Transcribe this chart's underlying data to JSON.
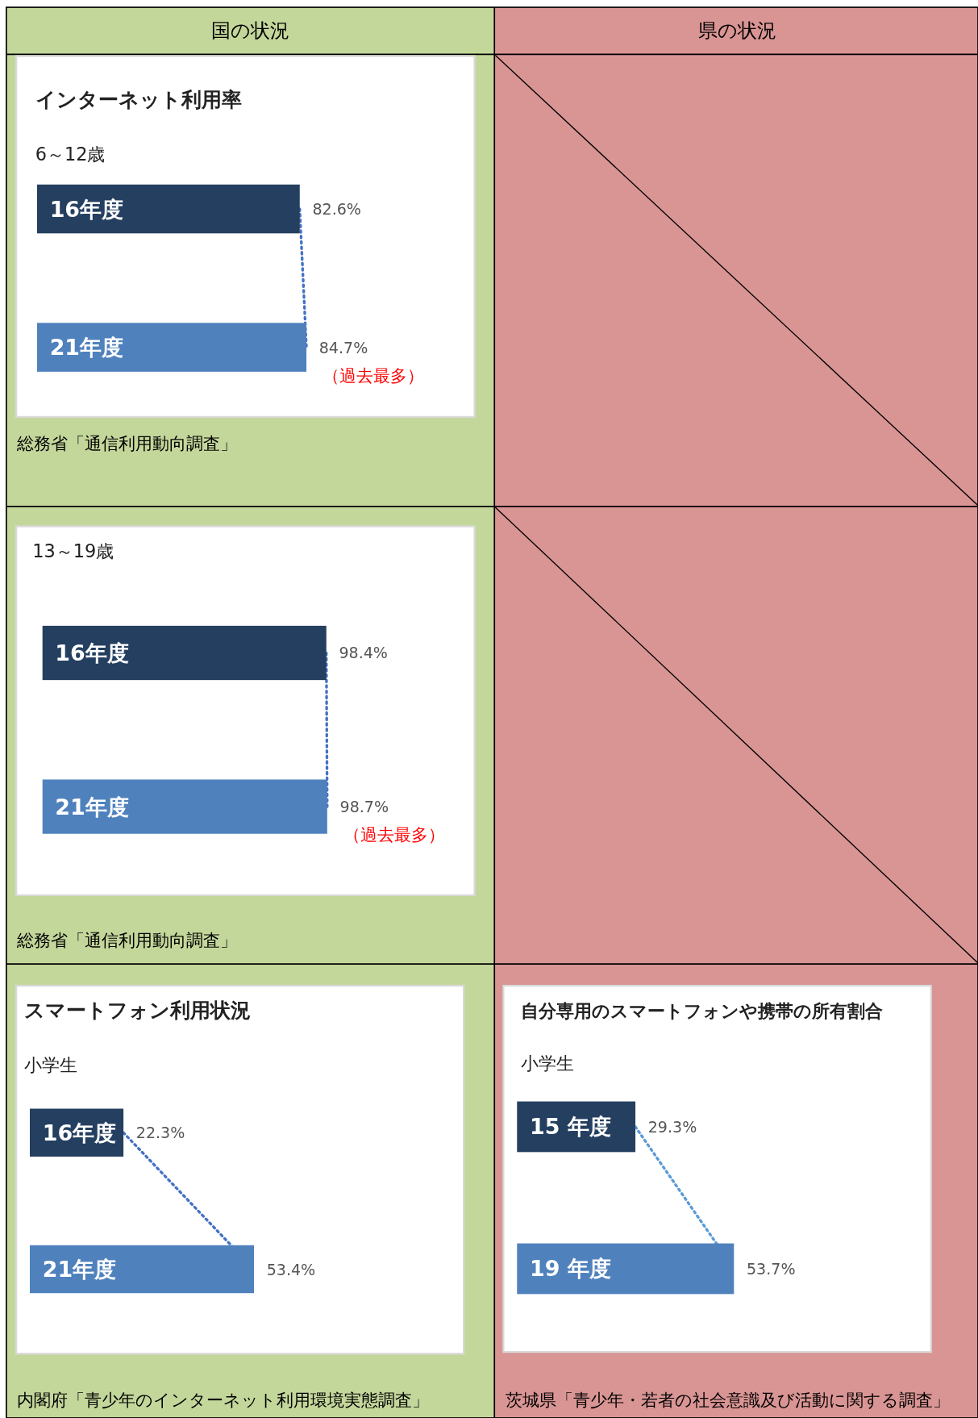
{
  "chart_data": [
    {
      "type": "other",
      "title": "国の状況"
    },
    {
      "type": "other",
      "title": "県の状況"
    },
    {
      "type": "bar",
      "orientation": "horizontal",
      "title": "インターネット利用率",
      "subtitle": "6～12歳",
      "categories": [
        "16年度",
        "21年度"
      ],
      "values": [
        82.6,
        84.7
      ],
      "colors": [
        "#243f60",
        "#4f81bd"
      ],
      "value_labels": [
        "82.6%",
        "84.7%"
      ],
      "annotations": [
        "（過去最多）",
        "総務省「通信利用動向調査」"
      ]
    },
    {
      "type": "bar",
      "orientation": "horizontal",
      "subtitle": "13～19歳",
      "categories": [
        "16年度",
        "21年度"
      ],
      "values": [
        98.4,
        98.7
      ],
      "colors": [
        "#243f60",
        "#4f81bd"
      ],
      "value_labels": [
        "98.4%",
        "98.7%"
      ],
      "annotations": [
        "（過去最多）",
        "総務省「通信利用動向調査」"
      ]
    },
    {
      "type": "bar",
      "orientation": "horizontal",
      "title": "スマートフォン利用状況",
      "subtitle": "小学生",
      "categories": [
        "16年度",
        "21年度"
      ],
      "values": [
        22.3,
        53.4
      ],
      "colors": [
        "#243f60",
        "#4f81bd"
      ],
      "value_labels": [
        "22.3%",
        "53.4%"
      ],
      "annotations": [
        "内閣府「青少年のインターネット利用環境実態調査」"
      ]
    },
    {
      "type": "bar",
      "orientation": "horizontal",
      "title": "自分専用のスマートフォンや携帯の所有割合",
      "subtitle": "小学生",
      "categories": [
        "15 年度",
        "19 年度"
      ],
      "values": [
        29.3,
        53.7
      ],
      "colors": [
        "#243f60",
        "#4f81bd"
      ],
      "value_labels": [
        "29.3%",
        "53.7%"
      ],
      "annotations": [
        "茨城県「青少年・若者の社会意識及び活動に関する調査」"
      ]
    }
  ]
}
